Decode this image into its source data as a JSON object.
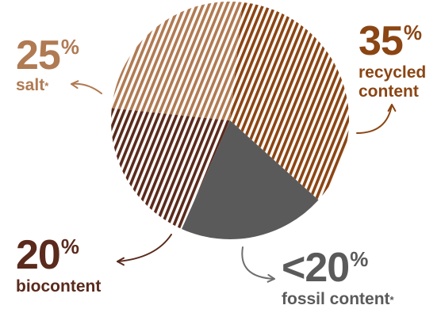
{
  "chart_data": {
    "type": "pie",
    "slices": [
      {
        "value": 35,
        "value_text": "35",
        "unit": "%",
        "label": "recycled\ncontent",
        "asterisk": "",
        "color": "#8B4513",
        "pattern": "stripes",
        "stripe_color": "#8B4513"
      },
      {
        "value": 20,
        "value_text": "<20",
        "unit": "%",
        "label": "fossil content",
        "asterisk": "*",
        "color": "#5a5a5a",
        "pattern": "solid",
        "stripe_color": "#5a5a5a"
      },
      {
        "value": 20,
        "value_text": "20",
        "unit": "%",
        "label": "biocontent",
        "asterisk": "",
        "color": "#5a2a1c",
        "pattern": "stripes",
        "stripe_color": "#5a2a1c"
      },
      {
        "value": 25,
        "value_text": "25",
        "unit": "%",
        "label": "salt",
        "asterisk": "*",
        "color": "#b07a52",
        "pattern": "stripes",
        "stripe_color": "#b07a52"
      }
    ]
  },
  "colors": {
    "recycled": "#8B4513",
    "fossil": "#5a5a5a",
    "fossil_arrow": "#6e6e6e",
    "biocontent": "#5a2a1c",
    "salt": "#b07a52"
  }
}
